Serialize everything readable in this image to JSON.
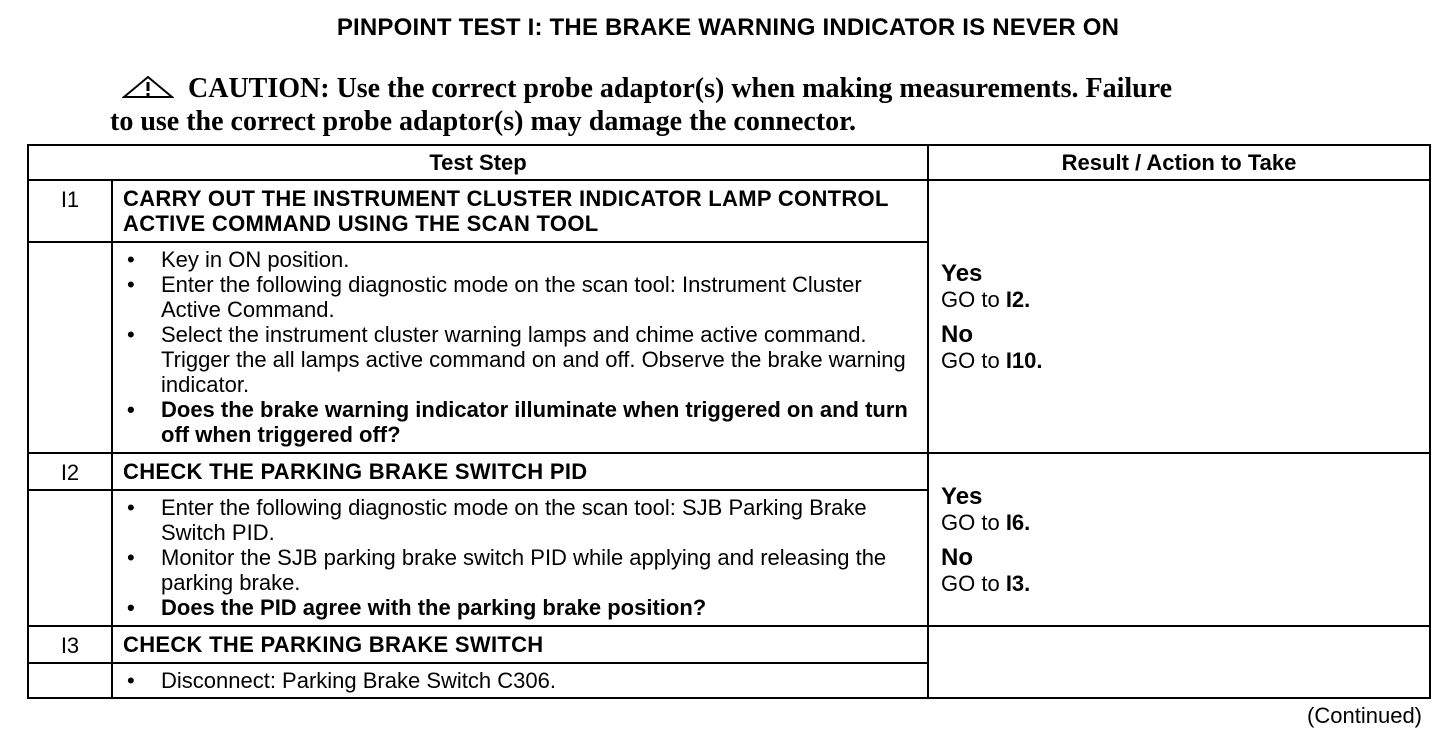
{
  "title": "PINPOINT TEST I: THE BRAKE WARNING INDICATOR IS NEVER ON",
  "caution": {
    "icon": "warning-triangle-icon",
    "label": "CAUTION:",
    "line1": "Use the correct probe adaptor(s) when making measurements. Failure",
    "line2": "to use the correct probe adaptor(s) may damage the connector."
  },
  "table": {
    "headers": [
      "Test Step",
      "Result / Action to Take"
    ],
    "steps": [
      {
        "id": "I1",
        "title": "CARRY OUT THE INSTRUMENT CLUSTER INDICATOR LAMP CONTROL ACTIVE COMMAND USING THE SCAN TOOL",
        "bullets": [
          "Key in ON position.",
          "Enter the following diagnostic mode on the scan tool: Instrument Cluster Active Command.",
          "Select the instrument cluster warning lamps and chime active command. Trigger the all lamps active command on and off. Observe the brake warning indicator.",
          "Does the brake warning indicator illuminate when triggered on and turn off when triggered off?"
        ],
        "yes": "Yes",
        "yes_action": "GO to ",
        "yes_target": "I2.",
        "no": "No",
        "no_action": "GO to ",
        "no_target": "I10."
      },
      {
        "id": "I2",
        "title": "CHECK THE PARKING BRAKE SWITCH PID",
        "bullets": [
          "Enter the following diagnostic mode on the scan tool: SJB Parking Brake Switch PID.",
          "Monitor the SJB parking brake switch PID while applying and releasing the parking brake.",
          "Does the PID agree with the parking brake position?"
        ],
        "yes": "Yes",
        "yes_action": "GO to ",
        "yes_target": "I6.",
        "no": "No",
        "no_action": "GO to ",
        "no_target": "I3."
      },
      {
        "id": "I3",
        "title": "CHECK THE PARKING BRAKE SWITCH",
        "bullets": [
          "Disconnect: Parking Brake Switch C306."
        ]
      }
    ]
  },
  "continued": "(Continued)"
}
